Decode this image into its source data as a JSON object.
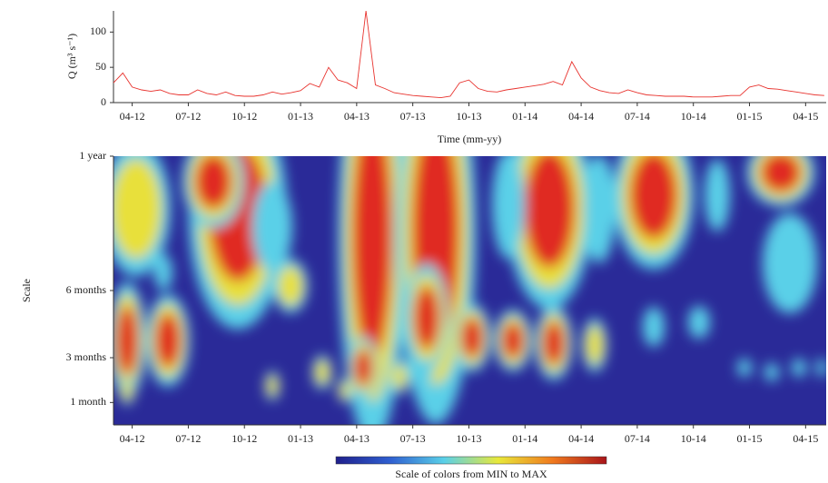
{
  "chart_data": [
    {
      "type": "line",
      "ylabel": "Q (m³ s⁻¹)",
      "xlabel": "Time (mm-yy)",
      "color": "#e8332e",
      "x": [
        3,
        3.5,
        4,
        4.5,
        5,
        5.5,
        6,
        6.5,
        7,
        7.5,
        8,
        8.5,
        9,
        9.5,
        10,
        10.5,
        11,
        11.5,
        12,
        12.5,
        13,
        13.5,
        14,
        14.5,
        15,
        15.5,
        16,
        16.5,
        17,
        17.5,
        18,
        18.5,
        19,
        19.5,
        20,
        20.5,
        21,
        21.5,
        22,
        22.5,
        23,
        23.5,
        24,
        24.5,
        25,
        25.5,
        26,
        26.5,
        27,
        27.5,
        28,
        28.5,
        29,
        29.5,
        30,
        30.5,
        31,
        31.5,
        32,
        32.5,
        33,
        33.5,
        34,
        34.5,
        35,
        35.5,
        36,
        36.5,
        37,
        37.5,
        38,
        38.5,
        39,
        39.5,
        40,
        40.5,
        41
      ],
      "values": [
        28,
        42,
        22,
        18,
        16,
        18,
        13,
        11,
        11,
        18,
        13,
        11,
        15,
        10,
        9,
        9,
        11,
        15,
        12,
        14,
        17,
        27,
        22,
        50,
        32,
        28,
        20,
        130,
        25,
        20,
        14,
        12,
        10,
        9,
        8,
        7,
        9,
        28,
        32,
        20,
        16,
        15,
        18,
        20,
        22,
        24,
        26,
        30,
        25,
        58,
        35,
        22,
        17,
        14,
        13,
        18,
        14,
        11,
        10,
        9,
        9,
        9,
        8,
        8,
        8,
        9,
        10,
        10,
        22,
        25,
        20,
        19,
        17,
        15,
        13,
        11,
        10
      ],
      "xlim": [
        3,
        41.1
      ],
      "ylim": [
        0,
        130
      ],
      "yticks": [
        0,
        50,
        100
      ],
      "xticks": [
        {
          "value": 4,
          "label": "04-12"
        },
        {
          "value": 7,
          "label": "07-12"
        },
        {
          "value": 10,
          "label": "10-12"
        },
        {
          "value": 13,
          "label": "01-13"
        },
        {
          "value": 16,
          "label": "04-13"
        },
        {
          "value": 19,
          "label": "07-13"
        },
        {
          "value": 22,
          "label": "10-13"
        },
        {
          "value": 25,
          "label": "01-14"
        },
        {
          "value": 28,
          "label": "04-14"
        },
        {
          "value": 31,
          "label": "07-14"
        },
        {
          "value": 34,
          "label": "10-14"
        },
        {
          "value": 37,
          "label": "01-15"
        },
        {
          "value": 40,
          "label": "04-15"
        }
      ]
    },
    {
      "type": "heatmap",
      "ylabel": "Scale",
      "colorbar_label": "Scale of colors from MIN to MAX",
      "xlim": [
        3,
        41.1
      ],
      "ylim": [
        0,
        12
      ],
      "yticks": [
        {
          "value": 12,
          "label": "1 year"
        },
        {
          "value": 6,
          "label": "6 months"
        },
        {
          "value": 3,
          "label": "3 months"
        },
        {
          "value": 1,
          "label": "1 month"
        }
      ],
      "xticks": [
        {
          "value": 4,
          "label": "04-12"
        },
        {
          "value": 7,
          "label": "07-12"
        },
        {
          "value": 10,
          "label": "10-12"
        },
        {
          "value": 13,
          "label": "01-13"
        },
        {
          "value": 16,
          "label": "04-13"
        },
        {
          "value": 19,
          "label": "07-13"
        },
        {
          "value": 22,
          "label": "10-13"
        },
        {
          "value": 25,
          "label": "01-14"
        },
        {
          "value": 28,
          "label": "04-14"
        },
        {
          "value": 31,
          "label": "07-14"
        },
        {
          "value": 34,
          "label": "10-14"
        },
        {
          "value": 37,
          "label": "01-15"
        },
        {
          "value": 40,
          "label": "04-15"
        }
      ]
    }
  ]
}
